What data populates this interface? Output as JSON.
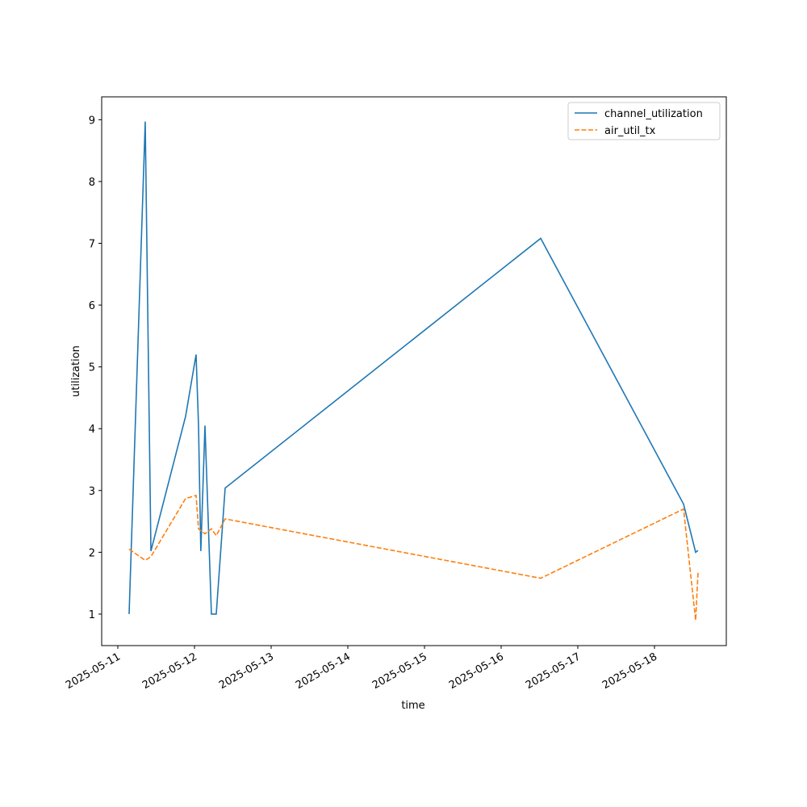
{
  "chart_data": {
    "type": "line",
    "xlabel": "time",
    "ylabel": "utilization",
    "x": [
      "2025-05-11T03:32",
      "2025-05-11T08:35",
      "2025-05-11T10:22",
      "2025-05-11T21:13",
      "2025-05-12T00:30",
      "2025-05-12T01:16",
      "2025-05-12T01:59",
      "2025-05-12T03:17",
      "2025-05-12T05:18",
      "2025-05-12T06:49",
      "2025-05-12T09:36",
      "2025-05-16T12:23",
      "2025-05-18T09:06",
      "2025-05-18T12:53",
      "2025-05-18T13:38"
    ],
    "series": [
      {
        "name": "channel_utilization",
        "color": "#1f77b4",
        "dash": "solid",
        "values": [
          1.0,
          8.97,
          2.02,
          4.2,
          5.2,
          4.05,
          2.02,
          4.05,
          1.0,
          1.0,
          3.04,
          7.08,
          2.78,
          2.0,
          2.03
        ]
      },
      {
        "name": "air_util_tx",
        "color": "#ff7f0e",
        "dash": "dashed",
        "values": [
          2.05,
          1.87,
          1.93,
          2.87,
          2.92,
          2.38,
          2.35,
          2.3,
          2.38,
          2.27,
          2.54,
          1.58,
          2.7,
          0.9,
          1.67
        ]
      }
    ],
    "xlim": [
      "2025-05-10T18:57",
      "2025-05-18T22:29"
    ],
    "xticks": [
      "2025-05-11",
      "2025-05-12",
      "2025-05-13",
      "2025-05-14",
      "2025-05-15",
      "2025-05-16",
      "2025-05-17",
      "2025-05-18"
    ],
    "ylim": [
      0.49,
      9.37
    ],
    "yticks": [
      1,
      2,
      3,
      4,
      5,
      6,
      7,
      8,
      9
    ],
    "legend": "upper right",
    "grid": false
  }
}
